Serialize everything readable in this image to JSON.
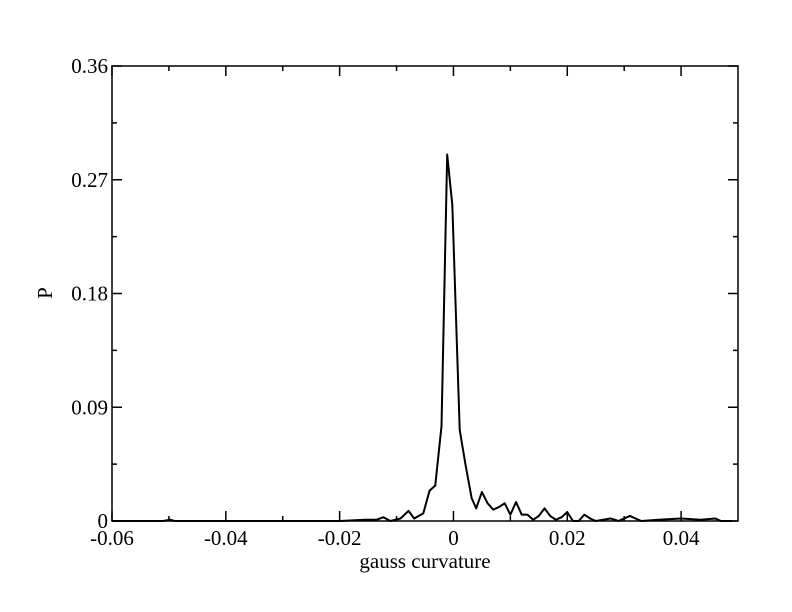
{
  "chart_data": {
    "type": "line",
    "x_label": "gauss curvature",
    "y_label": "P",
    "xlim": [
      -0.06,
      0.05
    ],
    "ylim": [
      0,
      0.36
    ],
    "xticks": [
      -0.06,
      -0.04,
      -0.02,
      0,
      0.02,
      0.04
    ],
    "yticks": [
      0,
      0.09,
      0.18,
      0.27,
      0.36
    ],
    "color": "#000000",
    "x": [
      -0.06,
      -0.051,
      -0.0498,
      -0.049,
      -0.02,
      -0.0155,
      -0.0135,
      -0.0123,
      -0.0111,
      -0.0093,
      -0.0079,
      -0.0069,
      -0.0053,
      -0.0042,
      -0.0032,
      -0.0021,
      -0.0011,
      -0.0002,
      0.0011,
      0.0021,
      0.0032,
      0.004,
      0.005,
      0.006,
      0.007,
      0.008,
      0.009,
      0.01,
      0.011,
      0.012,
      0.013,
      0.014,
      0.015,
      0.016,
      0.017,
      0.018,
      0.019,
      0.02,
      0.021,
      0.022,
      0.023,
      0.024,
      0.025,
      0.0276,
      0.029,
      0.031,
      0.033,
      0.036,
      0.04,
      0.0435,
      0.046,
      0.047,
      0.049
    ],
    "values": [
      0,
      0,
      0.001,
      0,
      0,
      0.001,
      0.001,
      0.003,
      0,
      0.002,
      0.008,
      0.002,
      0.006,
      0.024,
      0.028,
      0.075,
      0.29,
      0.25,
      0.072,
      0.045,
      0.018,
      0.01,
      0.023,
      0.014,
      0.009,
      0.011,
      0.014,
      0.005,
      0.015,
      0.005,
      0.005,
      0.001,
      0.004,
      0.01,
      0.004,
      0.001,
      0.003,
      0.007,
      0,
      0,
      0.005,
      0.002,
      0,
      0.002,
      0,
      0.004,
      0,
      0.001,
      0.002,
      0.001,
      0.002,
      0,
      0
    ]
  }
}
